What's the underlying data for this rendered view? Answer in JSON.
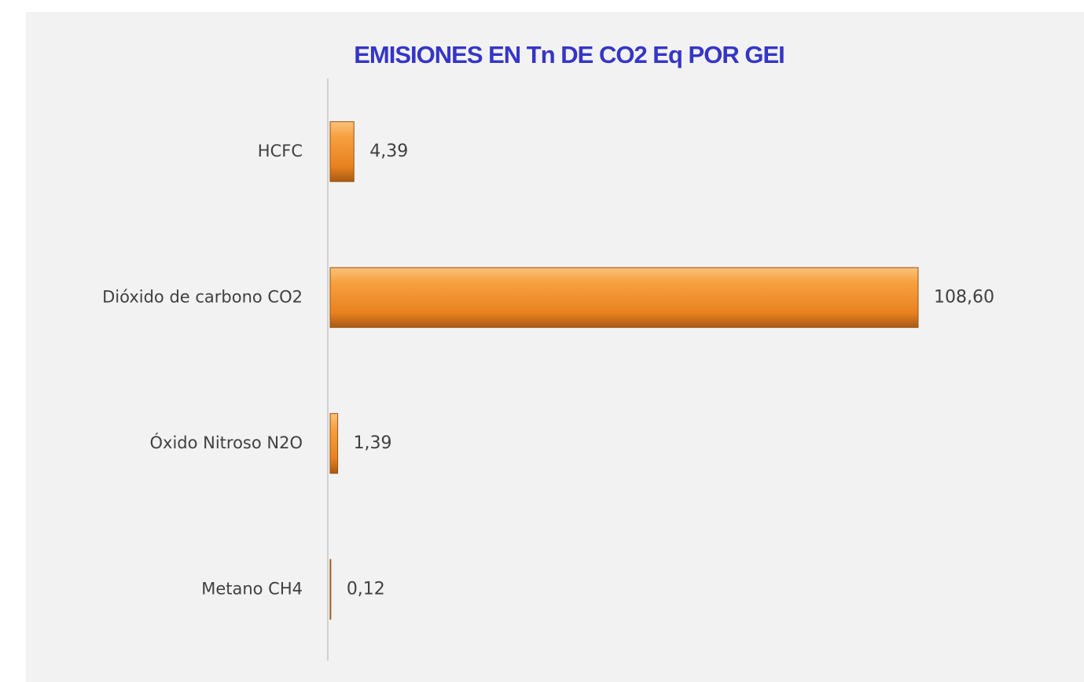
{
  "chart_data": {
    "type": "hbar",
    "title": "EMISIONES EN Tn DE CO2 Eq POR GEI",
    "categories": [
      "HCFC",
      "Dióxido de carbono CO2",
      "Óxido Nitroso N2O",
      "Metano CH4"
    ],
    "values": [
      4.39,
      108.6,
      1.39,
      0.12
    ],
    "value_labels": [
      "4,39",
      "108,60",
      "1,39",
      "0,12"
    ],
    "color": "#f28c28"
  }
}
